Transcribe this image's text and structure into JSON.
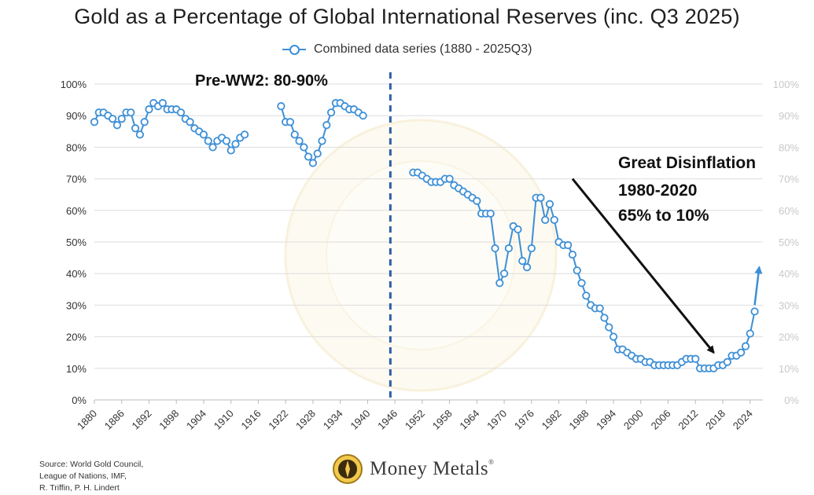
{
  "title": "Gold as a Percentage of Global International Reserves (inc. Q3 2025)",
  "legend_label": "Combined data series (1880 - 2025Q3)",
  "source_lines": [
    "Source: World Gold Council,",
    "League of Nations, IMF,",
    "R. Triffin, P. H. Lindert"
  ],
  "brand": {
    "name": "Money Metals",
    "reg": "®"
  },
  "colors": {
    "series": "#3d8fd6",
    "divider": "#2d5ea8",
    "arrow": "#111111",
    "grid": "#dddddd",
    "watermark": "#e9cf7a"
  },
  "chart_data": {
    "type": "line",
    "xlim": [
      1880,
      2027
    ],
    "ylim": [
      0,
      100
    ],
    "y_ticks": [
      0,
      10,
      20,
      30,
      40,
      50,
      60,
      70,
      80,
      90,
      100
    ],
    "y_tick_labels": [
      "0%",
      "10%",
      "20%",
      "30%",
      "40%",
      "50%",
      "60%",
      "70%",
      "80%",
      "90%",
      "100%"
    ],
    "x_ticks": [
      1880,
      1886,
      1892,
      1898,
      1904,
      1910,
      1916,
      1922,
      1928,
      1934,
      1940,
      1946,
      1952,
      1958,
      1964,
      1970,
      1976,
      1982,
      1988,
      1994,
      2000,
      2006,
      2012,
      2018,
      2024
    ],
    "grid": true,
    "legend_position": "top-center",
    "series": [
      {
        "name": "Combined data series (1880 - 2025Q3)",
        "segments": [
          {
            "x": [
              1880,
              1881,
              1882,
              1883,
              1884,
              1885,
              1886,
              1887,
              1888,
              1889,
              1890,
              1891,
              1892,
              1893,
              1894,
              1895,
              1896,
              1897,
              1898,
              1899,
              1900,
              1901,
              1902,
              1903,
              1904,
              1905,
              1906,
              1907,
              1908,
              1909,
              1910,
              1911,
              1912,
              1913
            ],
            "y": [
              88,
              91,
              91,
              90,
              89,
              87,
              89,
              91,
              91,
              86,
              84,
              88,
              92,
              94,
              93,
              94,
              92,
              92,
              92,
              91,
              89,
              88,
              86,
              85,
              84,
              82,
              80,
              82,
              83,
              82,
              79,
              81,
              83,
              84
            ]
          },
          {
            "x": [
              1921,
              1922,
              1923,
              1924,
              1925,
              1926,
              1927,
              1928,
              1929,
              1930,
              1931,
              1932,
              1933,
              1934,
              1935,
              1936,
              1937,
              1938,
              1939
            ],
            "y": [
              93,
              88,
              88,
              84,
              82,
              80,
              77,
              75,
              78,
              82,
              87,
              91,
              94,
              94,
              93,
              92,
              92,
              91,
              90
            ]
          },
          {
            "x": [
              1950,
              1951,
              1952,
              1953,
              1954,
              1955,
              1956,
              1957,
              1958,
              1959,
              1960,
              1961,
              1962,
              1963,
              1964,
              1965,
              1966,
              1967,
              1968,
              1969,
              1970,
              1971,
              1972,
              1973,
              1974,
              1975,
              1976,
              1977,
              1978,
              1979,
              1980,
              1981,
              1982,
              1983,
              1984,
              1985,
              1986,
              1987,
              1988,
              1989,
              1990,
              1991,
              1992,
              1993,
              1994,
              1995,
              1996,
              1997,
              1998,
              1999,
              2000,
              2001,
              2002,
              2003,
              2004,
              2005,
              2006,
              2007,
              2008,
              2009,
              2010,
              2011,
              2012,
              2013,
              2014,
              2015,
              2016,
              2017,
              2018,
              2019,
              2020,
              2021,
              2022,
              2023,
              2024,
              2025
            ],
            "y": [
              72,
              72,
              71,
              70,
              69,
              69,
              69,
              70,
              70,
              68,
              67,
              66,
              65,
              64,
              63,
              59,
              59,
              59,
              48,
              37,
              40,
              48,
              55,
              54,
              44,
              42,
              48,
              64,
              64,
              57,
              62,
              57,
              50,
              49,
              49,
              46,
              41,
              37,
              33,
              30,
              29,
              29,
              26,
              23,
              20,
              16,
              16,
              15,
              14,
              13,
              13,
              12,
              12,
              11,
              11,
              11,
              11,
              11,
              11,
              12,
              13,
              13,
              13,
              10,
              10,
              10,
              10,
              11,
              11,
              12,
              14,
              14,
              15,
              17,
              21,
              28
            ]
          }
        ]
      }
    ],
    "annotations": [
      {
        "text": "Pre-WW2: 80-90%"
      },
      {
        "text": "Great Disinflation"
      },
      {
        "text": "1980-2020"
      },
      {
        "text": "65% to 10%"
      }
    ],
    "divider_x": 1945,
    "arrow_down": {
      "from": [
        1985,
        70
      ],
      "to": [
        2016,
        15
      ]
    },
    "arrow_up": {
      "from": [
        2025,
        30
      ],
      "to": [
        2026,
        42
      ]
    }
  }
}
